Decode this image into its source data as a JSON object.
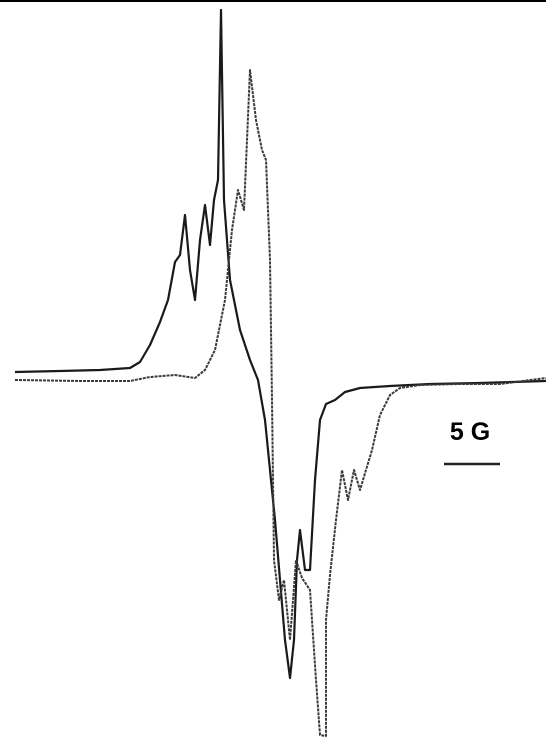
{
  "scale_bar": {
    "label": "5 G"
  }
}
